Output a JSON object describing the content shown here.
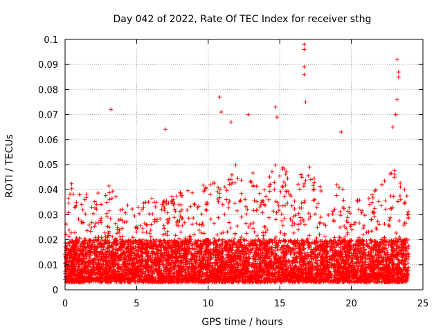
{
  "chart_data": {
    "type": "scatter",
    "title": "Day 042 of 2022, Rate Of TEC Index for receiver sthg",
    "xlabel": "GPS time / hours",
    "ylabel": "ROTI / TECUs",
    "xlim": [
      0,
      25
    ],
    "ylim": [
      0,
      0.1
    ],
    "xticks": [
      0,
      5,
      10,
      15,
      20,
      25
    ],
    "xtick_labels": [
      "0",
      "5",
      "10",
      "15",
      "20",
      "25"
    ],
    "yticks": [
      0,
      0.01,
      0.02,
      0.03,
      0.04,
      0.05,
      0.06,
      0.07,
      0.08,
      0.09,
      0.1
    ],
    "ytick_labels": [
      "0",
      "0.01",
      "0.02",
      "0.03",
      "0.04",
      "0.05",
      "0.06",
      "0.07",
      "0.08",
      "0.09",
      "0.1"
    ],
    "grid": true,
    "marker": "+",
    "marker_color": "#ff0000",
    "series": [
      {
        "name": "ROTI",
        "x_range": [
          0,
          24
        ],
        "typical_range": [
          0.003,
          0.02
        ],
        "notable_points": [
          {
            "x": 3.2,
            "y": 0.072
          },
          {
            "x": 7.0,
            "y": 0.064
          },
          {
            "x": 10.8,
            "y": 0.077
          },
          {
            "x": 10.9,
            "y": 0.071
          },
          {
            "x": 11.6,
            "y": 0.067
          },
          {
            "x": 12.8,
            "y": 0.07
          },
          {
            "x": 14.7,
            "y": 0.073
          },
          {
            "x": 14.8,
            "y": 0.069
          },
          {
            "x": 16.7,
            "y": 0.098
          },
          {
            "x": 16.7,
            "y": 0.096
          },
          {
            "x": 16.7,
            "y": 0.089
          },
          {
            "x": 16.7,
            "y": 0.086
          },
          {
            "x": 16.8,
            "y": 0.075
          },
          {
            "x": 19.3,
            "y": 0.063
          },
          {
            "x": 23.2,
            "y": 0.092
          },
          {
            "x": 23.3,
            "y": 0.087
          },
          {
            "x": 23.3,
            "y": 0.085
          },
          {
            "x": 23.2,
            "y": 0.076
          },
          {
            "x": 23.1,
            "y": 0.07
          },
          {
            "x": 22.9,
            "y": 0.065
          }
        ]
      }
    ]
  }
}
